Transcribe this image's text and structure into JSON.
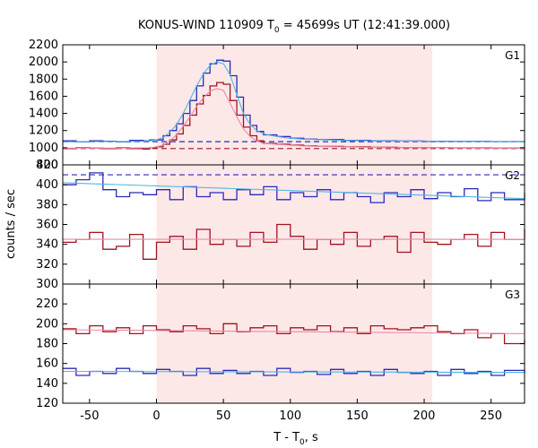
{
  "chart_data": {
    "type": "line",
    "title_main": "KONUS-WIND 110909 T",
    "title_sub": "0",
    "title_rest": " = 45699s UT (12:41:39.000)",
    "xlabel_main": "T - T",
    "xlabel_sub": "0",
    "xlabel_rest": ", s",
    "ylabel": "counts / sec",
    "xlim": [
      -70,
      275
    ],
    "x_ticks": [
      "-50",
      "0",
      "50",
      "100",
      "150",
      "200",
      "250"
    ],
    "x_tick_values": [
      -50,
      0,
      50,
      100,
      150,
      200,
      250
    ],
    "highlight_interval": [
      0,
      206
    ],
    "grid": false,
    "colors": {
      "highlight": "#fde8e8",
      "blue_step": "#2a2aba",
      "cyan_fit": "#4fb6e6",
      "red_step": "#a3121f",
      "pink_fit": "#e88aa6"
    },
    "panels": [
      {
        "label": "G1",
        "ylim": [
          800,
          2200
        ],
        "y_ticks": [
          "800",
          "1000",
          "1200",
          "1400",
          "1600",
          "1800",
          "2000",
          "2200"
        ],
        "y_tick_values": [
          800,
          1000,
          1200,
          1400,
          1600,
          1800,
          2000,
          2200
        ],
        "background_blue": 1070,
        "background_red": 990,
        "series": [
          {
            "x": [
              -70,
              -60,
              -50,
              -40,
              -30,
              -20,
              -10,
              -5,
              0,
              5,
              10,
              15,
              20,
              25,
              30,
              35,
              40,
              45,
              50,
              55,
              60,
              65,
              70,
              75,
              80,
              90,
              100,
              110,
              120,
              140,
              160,
              180,
              200,
              220,
              250,
              275
            ],
            "y": [
              1080,
              1070,
              1080,
              1075,
              1070,
              1085,
              1080,
              1090,
              1090,
              1140,
              1200,
              1280,
              1400,
              1550,
              1720,
              1870,
              1980,
              2020,
              2010,
              1840,
              1590,
              1380,
              1260,
              1190,
              1150,
              1130,
              1110,
              1100,
              1095,
              1085,
              1080,
              1078,
              1075,
              1074,
              1072,
              1070
            ]
          },
          {
            "x": [
              -70,
              -60,
              -50,
              -40,
              -30,
              -20,
              -10,
              -5,
              0,
              5,
              10,
              15,
              20,
              25,
              30,
              35,
              40,
              45,
              50,
              55,
              60,
              65,
              70,
              75,
              80,
              90,
              100,
              110,
              120,
              140,
              160,
              180,
              200,
              220,
              250,
              275
            ],
            "y": [
              1070,
              1070,
              1072,
              1072,
              1073,
              1074,
              1075,
              1080,
              1090,
              1120,
              1180,
              1270,
              1400,
              1560,
              1720,
              1860,
              1960,
              2000,
              1980,
              1850,
              1620,
              1400,
              1270,
              1200,
              1160,
              1130,
              1110,
              1100,
              1095,
              1085,
              1080,
              1078,
              1075,
              1074,
              1072,
              1070
            ]
          },
          {
            "x": [
              -70,
              -60,
              -50,
              -40,
              -30,
              -20,
              -10,
              -5,
              0,
              5,
              10,
              15,
              20,
              25,
              30,
              35,
              40,
              45,
              50,
              55,
              60,
              65,
              70,
              75,
              80,
              90,
              100,
              110,
              120,
              140,
              160,
              180,
              200,
              220,
              250,
              275
            ],
            "y": [
              990,
              1000,
              995,
              990,
              1000,
              990,
              985,
              1000,
              1010,
              1040,
              1090,
              1160,
              1260,
              1380,
              1510,
              1610,
              1720,
              1760,
              1740,
              1550,
              1380,
              1240,
              1140,
              1080,
              1050,
              1040,
              1030,
              1020,
              1015,
              1010,
              1005,
              1000,
              1000,
              998,
              995,
              990
            ]
          },
          {
            "x": [
              -70,
              -60,
              -50,
              -40,
              -30,
              -20,
              -10,
              -5,
              0,
              5,
              10,
              15,
              20,
              25,
              30,
              35,
              40,
              45,
              50,
              55,
              60,
              65,
              70,
              75,
              80,
              90,
              100,
              110,
              120,
              140,
              160,
              180,
              200,
              220,
              250,
              275
            ],
            "y": [
              995,
              995,
              995,
              995,
              995,
              996,
              998,
              1000,
              1010,
              1030,
              1080,
              1150,
              1250,
              1360,
              1480,
              1580,
              1660,
              1690,
              1670,
              1520,
              1360,
              1220,
              1130,
              1080,
              1050,
              1040,
              1030,
              1020,
              1015,
              1010,
              1005,
              1000,
              1000,
              998,
              995,
              995
            ]
          }
        ]
      },
      {
        "label": "G2",
        "ylim": [
          300,
          420
        ],
        "y_ticks": [
          "300",
          "320",
          "340",
          "360",
          "380",
          "400",
          "420"
        ],
        "y_tick_values": [
          300,
          320,
          340,
          360,
          380,
          400,
          420
        ],
        "background_blue": 410,
        "background_red": null,
        "series": [
          {
            "x": [
              -70,
              -60,
              -50,
              -40,
              -30,
              -20,
              -10,
              0,
              10,
              20,
              30,
              40,
              50,
              60,
              70,
              80,
              90,
              100,
              110,
              120,
              130,
              140,
              150,
              160,
              170,
              180,
              190,
              200,
              210,
              220,
              230,
              240,
              250,
              260,
              275
            ],
            "y": [
              400,
              405,
              412,
              395,
              388,
              392,
              390,
              395,
              385,
              398,
              388,
              392,
              385,
              395,
              390,
              398,
              385,
              392,
              388,
              395,
              385,
              392,
              388,
              382,
              392,
              388,
              395,
              386,
              392,
              388,
              396,
              384,
              392,
              385,
              392
            ]
          },
          {
            "x": [
              -70,
              275
            ],
            "y": [
              402,
              386
            ]
          },
          {
            "x": [
              -70,
              -60,
              -50,
              -40,
              -30,
              -20,
              -10,
              0,
              10,
              20,
              30,
              40,
              50,
              60,
              70,
              80,
              90,
              100,
              110,
              120,
              130,
              140,
              150,
              160,
              170,
              180,
              190,
              200,
              210,
              220,
              230,
              240,
              250,
              260,
              275
            ],
            "y": [
              342,
              345,
              352,
              335,
              338,
              350,
              325,
              342,
              348,
              335,
              355,
              340,
              345,
              338,
              352,
              342,
              360,
              348,
              335,
              345,
              340,
              352,
              338,
              345,
              348,
              332,
              352,
              342,
              340,
              345,
              350,
              338,
              352,
              345,
              355
            ]
          },
          {
            "x": [
              -70,
              275
            ],
            "y": [
              345,
              345
            ]
          }
        ]
      },
      {
        "label": "G3",
        "ylim": [
          120,
          240
        ],
        "y_ticks": [
          "120",
          "140",
          "160",
          "180",
          "200",
          "220"
        ],
        "y_tick_values": [
          120,
          140,
          160,
          180,
          200,
          220
        ],
        "background_blue": null,
        "background_red": null,
        "series": [
          {
            "x": [
              -70,
              -60,
              -50,
              -40,
              -30,
              -20,
              -10,
              0,
              10,
              20,
              30,
              40,
              50,
              60,
              70,
              80,
              90,
              100,
              110,
              120,
              130,
              140,
              150,
              160,
              170,
              180,
              190,
              200,
              210,
              220,
              230,
              240,
              250,
              260,
              275
            ],
            "y": [
              155,
              148,
              152,
              150,
              155,
              152,
              150,
              154,
              152,
              148,
              155,
              150,
              153,
              150,
              152,
              148,
              155,
              151,
              152,
              149,
              154,
              150,
              152,
              148,
              154,
              151,
              150,
              152,
              148,
              154,
              150,
              152,
              148,
              153,
              150
            ]
          },
          {
            "x": [
              -70,
              275
            ],
            "y": [
              152,
              151
            ]
          },
          {
            "x": [
              -70,
              -60,
              -50,
              -40,
              -30,
              -20,
              -10,
              0,
              10,
              20,
              30,
              40,
              50,
              60,
              70,
              80,
              90,
              100,
              110,
              120,
              130,
              140,
              150,
              160,
              170,
              180,
              190,
              200,
              210,
              220,
              230,
              240,
              250,
              260,
              275
            ],
            "y": [
              195,
              190,
              198,
              192,
              196,
              190,
              198,
              194,
              192,
              198,
              195,
              190,
              200,
              192,
              196,
              198,
              190,
              196,
              194,
              198,
              192,
              196,
              190,
              198,
              195,
              194,
              196,
              198,
              192,
              190,
              194,
              186,
              190,
              180,
              184
            ]
          },
          {
            "x": [
              -70,
              275
            ],
            "y": [
              194,
              190
            ]
          }
        ]
      }
    ]
  }
}
